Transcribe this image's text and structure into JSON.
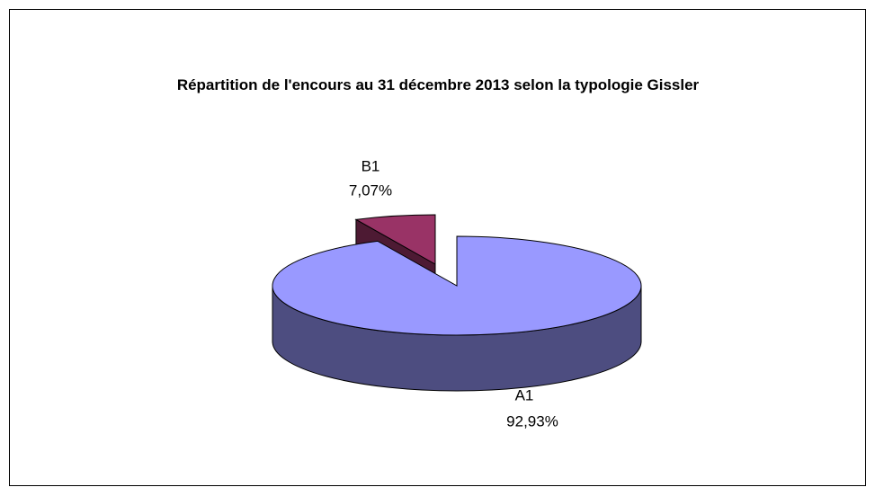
{
  "chart_data": {
    "type": "pie",
    "title": "Répartition de l'encours au 31 décembre 2013 selon la typologie Gissler",
    "categories": [
      "A1",
      "B1"
    ],
    "values": [
      92.93,
      7.07
    ],
    "value_labels": [
      "92,93%",
      "7,07%"
    ],
    "colors": [
      "#9999ff",
      "#993366"
    ]
  }
}
